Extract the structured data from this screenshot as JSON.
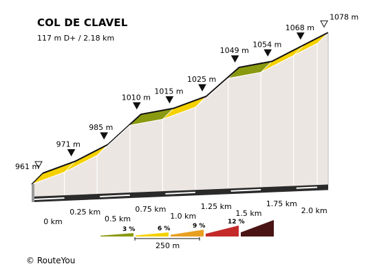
{
  "title": "COL DE CLAVEL",
  "subtitle": "117 m D+ / 2.18 km",
  "credit": "© RouteYou",
  "chart_data": {
    "type": "area",
    "title": "COL DE CLAVEL",
    "subtitle": "117 m D+ / 2.18 km",
    "x_unit": "km",
    "y_unit": "m",
    "waypoints": [
      {
        "km": 0.0,
        "elev": 961,
        "label": "961 m"
      },
      {
        "km": 0.25,
        "elev": 971,
        "label": "971 m"
      },
      {
        "km": 0.5,
        "elev": 985,
        "label": "985 m"
      },
      {
        "km": 0.75,
        "elev": 1010,
        "label": "1010 m"
      },
      {
        "km": 1.0,
        "elev": 1015,
        "label": "1015 m"
      },
      {
        "km": 1.25,
        "elev": 1025,
        "label": "1025 m"
      },
      {
        "km": 1.5,
        "elev": 1049,
        "label": "1049 m"
      },
      {
        "km": 1.75,
        "elev": 1054,
        "label": "1054 m"
      },
      {
        "km": 2.0,
        "elev": 1068,
        "label": "1068 m"
      },
      {
        "km": 2.18,
        "elev": 1078,
        "label": "1078 m"
      }
    ],
    "x_ticks": [
      "0 km",
      "0.25 km",
      "0.5 km",
      "0.75 km",
      "1.0 km",
      "1.25 km",
      "1.5 km",
      "1.75 km",
      "2.0 km"
    ],
    "segment_colors": [
      "#f5d100",
      "#f5d100",
      "#c8101e",
      "#8a9a10",
      "#f5d100",
      "#c8101e",
      "#8a9a10",
      "#f5d100",
      "#f5d100"
    ],
    "legend": {
      "grades": [
        {
          "label": "3 %",
          "color": "#8a9a10"
        },
        {
          "label": "6 %",
          "color": "#f5d100"
        },
        {
          "label": "9 %",
          "color": "#e8a020"
        },
        {
          "label": "12 %",
          "color": "#c42a2a"
        },
        {
          "label": "",
          "color": "#4a1414"
        }
      ],
      "scale_label": "250 m"
    }
  }
}
